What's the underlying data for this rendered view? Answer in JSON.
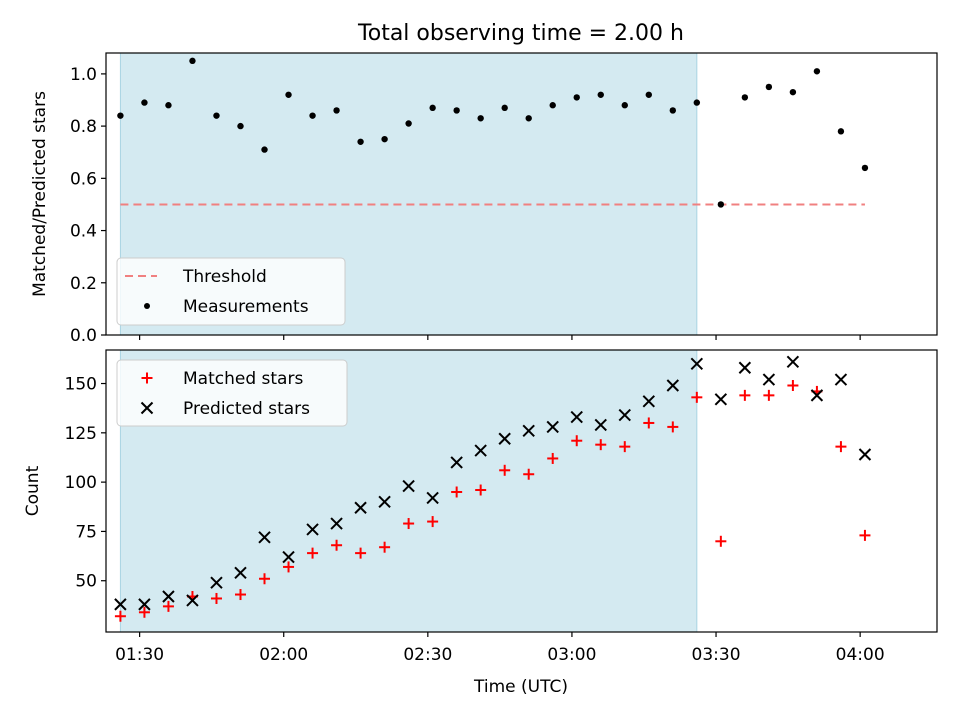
{
  "chart_data": [
    {
      "type": "scatter",
      "title": "Total observing time = 2.00 h",
      "ylabel": "Matched/Predicted stars",
      "xlabel": "",
      "xlim": [
        "01:23",
        "04:16"
      ],
      "ylim": [
        0,
        1.08
      ],
      "yticks": [
        0.0,
        0.2,
        0.4,
        0.6,
        0.8,
        1.0
      ],
      "ytick_labels": [
        "0.0",
        "0.2",
        "0.4",
        "0.6",
        "0.8",
        "1.0"
      ],
      "shaded_interval": [
        "01:26",
        "03:26"
      ],
      "shade_color": "#d4eaf1",
      "legend_position": "lower-left",
      "threshold": {
        "name": "Threshold",
        "y": 0.5,
        "x_range": [
          "01:26",
          "04:01"
        ],
        "color": "#f08080",
        "style": "dashed"
      },
      "series": [
        {
          "name": "Measurements",
          "marker": "dot",
          "color": "#000000",
          "x": [
            "01:26",
            "01:31",
            "01:36",
            "01:41",
            "01:46",
            "01:51",
            "01:56",
            "02:01",
            "02:06",
            "02:11",
            "02:16",
            "02:21",
            "02:26",
            "02:31",
            "02:36",
            "02:41",
            "02:46",
            "02:51",
            "02:56",
            "03:01",
            "03:06",
            "03:11",
            "03:16",
            "03:21",
            "03:26",
            "03:31",
            "03:36",
            "03:41",
            "03:46",
            "03:51",
            "03:56",
            "04:01"
          ],
          "values": [
            0.84,
            0.89,
            0.88,
            1.05,
            0.84,
            0.8,
            0.71,
            0.92,
            0.84,
            0.86,
            0.74,
            0.75,
            0.81,
            0.87,
            0.86,
            0.83,
            0.87,
            0.83,
            0.88,
            0.91,
            0.92,
            0.88,
            0.92,
            0.86,
            0.89,
            0.5,
            0.91,
            0.95,
            0.93,
            1.01,
            0.78,
            0.64
          ]
        }
      ]
    },
    {
      "type": "scatter",
      "title": "",
      "ylabel": "Count",
      "xlabel": "Time (UTC)",
      "xlim": [
        "01:23",
        "04:16"
      ],
      "ylim": [
        24,
        167
      ],
      "yticks": [
        50,
        75,
        100,
        125,
        150
      ],
      "ytick_labels": [
        "50",
        "75",
        "100",
        "125",
        "150"
      ],
      "xticks": [
        "01:30",
        "02:00",
        "02:30",
        "03:00",
        "03:30",
        "04:00"
      ],
      "shaded_interval": [
        "01:26",
        "03:26"
      ],
      "shade_color": "#d4eaf1",
      "legend_position": "upper-left",
      "series": [
        {
          "name": "Matched stars",
          "marker": "plus",
          "color": "#ff0000",
          "x": [
            "01:26",
            "01:31",
            "01:36",
            "01:41",
            "01:46",
            "01:51",
            "01:56",
            "02:01",
            "02:06",
            "02:11",
            "02:16",
            "02:21",
            "02:26",
            "02:31",
            "02:36",
            "02:41",
            "02:46",
            "02:51",
            "02:56",
            "03:01",
            "03:06",
            "03:11",
            "03:16",
            "03:21",
            "03:26",
            "03:31",
            "03:36",
            "03:41",
            "03:46",
            "03:51",
            "03:56",
            "04:01"
          ],
          "values": [
            32,
            34,
            37,
            42,
            41,
            43,
            51,
            57,
            64,
            68,
            64,
            67,
            79,
            80,
            95,
            96,
            106,
            104,
            112,
            121,
            119,
            118,
            130,
            128,
            143,
            70,
            144,
            144,
            149,
            146,
            118,
            73
          ]
        },
        {
          "name": "Predicted stars",
          "marker": "x",
          "color": "#000000",
          "x": [
            "01:26",
            "01:31",
            "01:36",
            "01:41",
            "01:46",
            "01:51",
            "01:56",
            "02:01",
            "02:06",
            "02:11",
            "02:16",
            "02:21",
            "02:26",
            "02:31",
            "02:36",
            "02:41",
            "02:46",
            "02:51",
            "02:56",
            "03:01",
            "03:06",
            "03:11",
            "03:16",
            "03:21",
            "03:26",
            "03:31",
            "03:36",
            "03:41",
            "03:46",
            "03:51",
            "03:56",
            "04:01"
          ],
          "values": [
            38,
            38,
            42,
            40,
            49,
            54,
            72,
            62,
            76,
            79,
            87,
            90,
            98,
            92,
            110,
            116,
            122,
            126,
            128,
            133,
            129,
            134,
            141,
            149,
            160,
            142,
            158,
            152,
            161,
            144,
            152,
            114
          ]
        }
      ]
    }
  ]
}
